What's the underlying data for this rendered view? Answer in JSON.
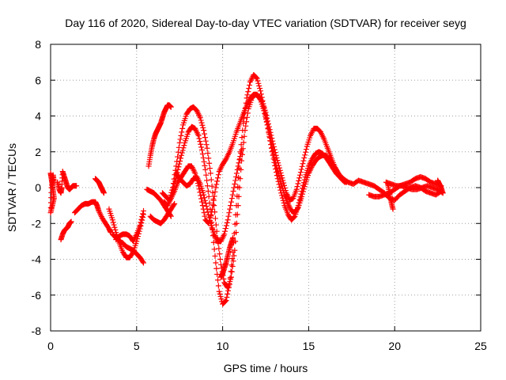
{
  "chart_data": {
    "type": "scatter",
    "title": "Day 116 of 2020, Sidereal Day-to-day VTEC variation (SDTVAR) for receiver seyg",
    "xlabel": "GPS time / hours",
    "ylabel": "SDTVAR / TECUs",
    "xlim": [
      0,
      25
    ],
    "ylim": [
      -8,
      8
    ],
    "x_ticks": [
      "0",
      "5",
      "10",
      "15",
      "20",
      "25"
    ],
    "y_ticks": [
      "-8",
      "-6",
      "-4",
      "-2",
      "0",
      "2",
      "4",
      "6",
      "8"
    ],
    "grid": true,
    "legend": "none",
    "marker": "+",
    "color": "#ff0000",
    "series": [
      {
        "x": [
          0.0,
          0.05,
          0.1,
          0.15,
          0.2,
          0.1,
          0.0,
          0.05,
          0.15,
          0.2
        ],
        "y": [
          0.8,
          0.5,
          0.2,
          -0.2,
          -0.6,
          -1.0,
          -1.4,
          0.0,
          0.7,
          0.3
        ]
      },
      {
        "x": [
          0.4,
          0.5,
          0.6,
          0.65,
          0.7,
          0.8,
          0.9,
          1.0,
          1.1,
          1.2,
          1.3,
          1.5
        ],
        "y": [
          0.3,
          -0.1,
          -0.3,
          0.0,
          0.9,
          0.6,
          0.3,
          0.0,
          -0.1,
          0.0,
          0.1,
          0.1
        ]
      },
      {
        "x": [
          0.6,
          0.7,
          0.8,
          0.9,
          1.0,
          1.1,
          1.2
        ],
        "y": [
          -2.9,
          -2.6,
          -2.4,
          -2.3,
          -2.2,
          -2.0,
          -1.9
        ]
      },
      {
        "x": [
          1.4,
          1.6,
          1.8,
          2.0,
          2.2,
          2.4,
          2.6,
          2.7,
          2.8,
          3.0,
          3.2,
          3.4,
          3.5
        ],
        "y": [
          -1.4,
          -1.2,
          -1.0,
          -0.9,
          -0.9,
          -0.8,
          -0.8,
          -1.0,
          -1.3,
          -1.7,
          -2.0,
          -2.3,
          -2.5
        ]
      },
      {
        "x": [
          2.6,
          2.7,
          2.8,
          2.9,
          3.0,
          3.1
        ],
        "y": [
          0.5,
          0.4,
          0.3,
          0.1,
          -0.1,
          -0.3
        ]
      },
      {
        "x": [
          3.4,
          3.6,
          3.8,
          4.0,
          4.2,
          4.4,
          4.6,
          4.8,
          5.0,
          5.2,
          5.4
        ],
        "y": [
          -1.2,
          -1.8,
          -2.5,
          -3.1,
          -3.6,
          -3.9,
          -3.9,
          -3.6,
          -3.0,
          -2.3,
          -1.5
        ]
      },
      {
        "x": [
          3.6,
          3.8,
          4.0,
          4.2,
          4.4,
          4.6,
          4.8,
          5.0,
          5.2,
          5.4
        ],
        "y": [
          -2.6,
          -2.8,
          -3.0,
          -3.1,
          -3.3,
          -3.4,
          -3.5,
          -3.7,
          -3.9,
          -4.2
        ]
      },
      {
        "x": [
          3.8,
          4.0,
          4.2,
          4.4,
          4.6,
          4.8,
          5.0,
          5.2,
          5.4
        ],
        "y": [
          -2.9,
          -2.7,
          -2.6,
          -2.6,
          -2.7,
          -3.0,
          -2.6,
          -2.1,
          -1.3
        ]
      },
      {
        "x": [
          5.6,
          5.8,
          6.0,
          6.2,
          6.4,
          6.6,
          6.8,
          7.0
        ],
        "y": [
          -0.1,
          -0.2,
          -0.3,
          -0.5,
          -0.7,
          -1.0,
          -1.3,
          -1.6
        ]
      },
      {
        "x": [
          5.8,
          6.0,
          6.2,
          6.4,
          6.6,
          6.8,
          7.0,
          7.2
        ],
        "y": [
          -1.6,
          -1.8,
          -1.9,
          -2.0,
          -1.8,
          -1.5,
          -1.2,
          -0.9
        ]
      },
      {
        "x": [
          5.7,
          5.8,
          5.9,
          6.0,
          6.1,
          6.2,
          6.3,
          6.4,
          6.5,
          6.6,
          6.7,
          6.8,
          6.9,
          7.0
        ],
        "y": [
          1.2,
          1.8,
          2.3,
          2.7,
          3.0,
          3.2,
          3.4,
          3.6,
          3.9,
          4.2,
          4.4,
          4.6,
          4.6,
          4.5
        ]
      },
      {
        "x": [
          6.5,
          6.7,
          6.9,
          7.1,
          7.3,
          7.5,
          7.7,
          7.9,
          8.1,
          8.3,
          8.5,
          8.7,
          8.9,
          9.1,
          9.3,
          9.5,
          9.7,
          9.9,
          10.1,
          10.3,
          10.5,
          10.7,
          10.9,
          11.1,
          11.3,
          11.5,
          11.7,
          11.9,
          12.1,
          12.3,
          12.5,
          12.7,
          12.9,
          13.1,
          13.3,
          13.5,
          13.7,
          13.9,
          14.1,
          14.3,
          14.5,
          14.7,
          14.9,
          15.1,
          15.3,
          15.5,
          15.7,
          15.9,
          16.1,
          16.3,
          16.5,
          16.7,
          16.9,
          17.1
        ],
        "y": [
          -0.3,
          -0.5,
          -0.7,
          0.0,
          1.2,
          2.5,
          3.5,
          4.1,
          4.4,
          4.5,
          4.3,
          3.9,
          3.2,
          2.2,
          0.8,
          -1.0,
          -2.8,
          -4.3,
          -5.3,
          -5.6,
          -5.0,
          -3.5,
          -1.0,
          1.5,
          3.2,
          4.4,
          5.0,
          5.2,
          5.1,
          4.8,
          4.2,
          3.4,
          2.6,
          1.8,
          1.1,
          0.4,
          -0.3,
          -0.7,
          -0.6,
          -0.1,
          0.7,
          1.5,
          2.3,
          2.9,
          3.3,
          3.3,
          3.1,
          2.7,
          2.2,
          1.7,
          1.2,
          0.8,
          0.5,
          0.3
        ]
      },
      {
        "x": [
          6.6,
          6.8,
          7.0,
          7.2,
          7.4,
          7.6,
          7.8,
          8.0,
          8.2,
          8.4,
          8.6,
          8.8,
          9.0,
          9.2,
          9.4,
          9.6,
          9.8,
          10.0,
          10.2,
          10.4,
          10.6,
          10.8,
          11.0,
          11.2,
          11.4,
          11.6,
          11.8,
          12.0,
          12.2,
          12.4,
          12.6,
          12.8,
          13.0,
          13.2,
          13.4,
          13.6,
          13.8,
          14.0,
          14.2,
          14.4,
          14.6,
          14.8,
          15.0,
          15.2,
          15.4,
          15.6,
          15.8,
          16.0,
          16.2,
          16.4,
          16.6,
          16.8,
          17.0,
          17.2
        ],
        "y": [
          -0.8,
          -1.0,
          -0.6,
          0.2,
          1.0,
          1.8,
          2.5,
          3.1,
          3.4,
          3.3,
          2.9,
          2.1,
          1.0,
          -0.5,
          -2.3,
          -4.2,
          -5.8,
          -6.5,
          -6.3,
          -5.4,
          -3.6,
          -1.0,
          1.6,
          3.6,
          5.0,
          5.9,
          6.3,
          6.1,
          5.4,
          4.5,
          3.5,
          2.4,
          1.4,
          0.5,
          -0.3,
          -1.0,
          -1.5,
          -1.8,
          -1.6,
          -1.0,
          -0.2,
          0.6,
          1.2,
          1.6,
          1.9,
          2.0,
          1.9,
          1.7,
          1.4,
          1.1,
          0.8,
          0.6,
          0.4,
          0.3
        ]
      },
      {
        "x": [
          7.0,
          7.2,
          7.4,
          7.6,
          7.8,
          8.0,
          8.2,
          8.4,
          8.6,
          8.8,
          9.0,
          9.2,
          9.4,
          9.6,
          9.8,
          10.0,
          10.2,
          10.4,
          10.6,
          10.8,
          11.0,
          11.2,
          11.4,
          11.6,
          11.8,
          12.0,
          12.2,
          12.4,
          12.6,
          12.8,
          13.0,
          13.2,
          13.4,
          13.6,
          13.8,
          14.0,
          14.2,
          14.4,
          14.6,
          14.8,
          15.0,
          15.2,
          15.4,
          15.6,
          15.8,
          16.0,
          16.2,
          16.4,
          16.6,
          16.8,
          17.0
        ],
        "y": [
          -0.6,
          -0.2,
          0.3,
          0.6,
          0.9,
          1.2,
          1.2,
          0.8,
          0.1,
          -0.8,
          -1.8,
          -2.0,
          -1.2,
          0.0,
          0.9,
          1.3,
          1.6,
          2.0,
          2.5,
          3.1,
          3.6,
          4.1,
          4.6,
          5.0,
          5.2,
          5.2,
          4.9,
          4.3,
          3.5,
          2.6,
          1.7,
          0.9,
          0.2,
          -0.4,
          -0.9,
          -1.3,
          -1.4,
          -1.1,
          -0.5,
          0.2,
          0.8,
          1.2,
          1.5,
          1.7,
          1.8,
          1.8,
          1.6,
          1.3,
          1.0,
          0.7,
          0.5
        ]
      },
      {
        "x": [
          7.3,
          7.5,
          7.7,
          7.9,
          8.1,
          8.3,
          8.5,
          8.7,
          8.9,
          9.1,
          9.3,
          9.5,
          9.7,
          9.9,
          10.1,
          10.3,
          10.5,
          10.7,
          10.9,
          11.1
        ],
        "y": [
          0.8,
          0.5,
          0.3,
          0.1,
          0.2,
          0.5,
          0.6,
          0.2,
          -0.4,
          -1.2,
          -2.0,
          -2.6,
          -3.0,
          -3.0,
          -2.6,
          -1.8,
          -0.8,
          0.2,
          1.2,
          2.1
        ]
      },
      {
        "x": [
          9.9,
          10.0,
          10.1,
          10.2,
          10.3,
          10.4,
          10.5,
          10.6
        ],
        "y": [
          -5.0,
          -4.8,
          -4.5,
          -4.2,
          -3.8,
          -3.4,
          -3.1,
          -2.8
        ]
      },
      {
        "x": [
          17.0,
          17.3,
          17.6,
          17.9,
          18.2,
          18.5,
          18.8,
          19.1,
          19.4,
          19.7,
          20.0,
          20.3,
          20.6,
          20.9,
          21.2,
          21.5,
          21.8,
          22.1,
          22.4,
          22.7
        ],
        "y": [
          0.5,
          0.3,
          0.2,
          0.4,
          0.3,
          0.2,
          0.1,
          -0.1,
          -0.3,
          -0.6,
          -0.7,
          -0.4,
          -0.2,
          0.0,
          0.1,
          0.0,
          -0.2,
          -0.3,
          -0.4,
          -0.2
        ]
      },
      {
        "x": [
          18.5,
          18.8,
          19.1,
          19.4,
          19.7,
          20.0,
          20.3,
          20.6,
          20.9,
          21.2,
          21.5,
          21.8,
          22.1,
          22.4,
          22.7
        ],
        "y": [
          -0.4,
          -0.5,
          -0.5,
          -0.4,
          -0.3,
          -0.1,
          0.1,
          0.2,
          0.3,
          0.5,
          0.6,
          0.5,
          0.3,
          0.2,
          0.1
        ]
      },
      {
        "x": [
          19.5,
          19.8,
          20.1,
          20.4,
          20.7,
          21.0,
          21.3,
          21.6,
          21.9,
          22.2,
          22.5,
          22.8
        ],
        "y": [
          0.3,
          0.2,
          0.1,
          0.1,
          0.0,
          -0.1,
          -0.1,
          0.0,
          0.1,
          0.0,
          -0.1,
          -0.3
        ]
      },
      {
        "x": [
          19.6,
          19.7,
          19.8,
          19.9
        ],
        "y": [
          0.2,
          -0.3,
          -0.8,
          -1.2
        ]
      },
      {
        "x": [
          22.5,
          22.6,
          22.7,
          22.8
        ],
        "y": [
          0.4,
          0.2,
          0.0,
          -0.3
        ]
      }
    ]
  }
}
